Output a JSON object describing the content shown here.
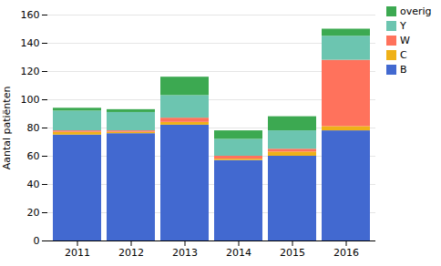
{
  "chart_data": {
    "type": "bar",
    "stacked": true,
    "categories": [
      "2011",
      "2012",
      "2013",
      "2014",
      "2015",
      "2016"
    ],
    "series": [
      {
        "name": "B",
        "values": [
          75,
          76,
          82,
          57,
          60,
          78
        ]
      },
      {
        "name": "C",
        "values": [
          2,
          1,
          2,
          1,
          3,
          3
        ]
      },
      {
        "name": "W",
        "values": [
          1,
          1,
          3,
          2,
          2,
          47
        ]
      },
      {
        "name": "Y",
        "values": [
          14,
          13,
          16,
          12,
          13,
          17
        ]
      },
      {
        "name": "overig",
        "values": [
          2,
          2,
          13,
          6,
          10,
          5
        ]
      }
    ],
    "ylabel": "Aantal patiënten",
    "ylim": [
      0,
      160
    ],
    "yticks": [
      0,
      20,
      40,
      60,
      80,
      100,
      120,
      140,
      160
    ],
    "grid": true,
    "legend": "upper right"
  }
}
